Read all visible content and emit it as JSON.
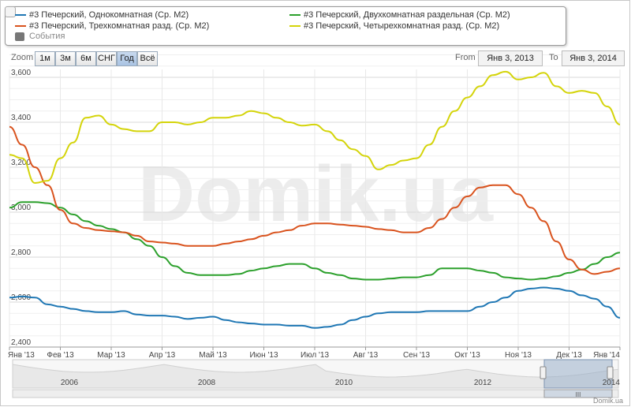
{
  "legend": {
    "items": [
      {
        "label": "#3 Печерский, Однокомнатная (Ср. М2)",
        "color": "#1f77b4"
      },
      {
        "label": "#3 Печерский, Двухкомнатная раздельная (Ср. М2)",
        "color": "#2ca02c"
      },
      {
        "label": "#3 Печерский, Трехкомнатная разд. (Ср. М2)",
        "color": "#d9531e"
      },
      {
        "label": "#3 Печерский, Четырехкомнатная разд. (Ср. М2)",
        "color": "#d4d40a"
      }
    ],
    "events_label": "События"
  },
  "zoom": {
    "label": "Zoom",
    "buttons": [
      "1м",
      "3м",
      "6м",
      "СНГ",
      "Год",
      "Всё"
    ],
    "active": "Год"
  },
  "range": {
    "from_label": "From",
    "from_value": "Янв 3, 2013",
    "to_label": "To",
    "to_value": "Янв 3, 2014"
  },
  "watermark": "Domik.ua",
  "credit": "Domik.ua",
  "chart_data": {
    "type": "line",
    "x_ticks": [
      "Янв '13",
      "Фев '13",
      "Мар '13",
      "Апр '13",
      "Май '13",
      "Июн '13",
      "Июл '13",
      "Авг '13",
      "Сен '13",
      "Окт '13",
      "Ноя '13",
      "Дек '13",
      "Янв '14"
    ],
    "y_ticks": [
      "2,400",
      "2,600",
      "2,800",
      "3,000",
      "3,200",
      "3,400",
      "3,600"
    ],
    "ylim": [
      2400,
      3600
    ],
    "x": [
      0,
      0.25,
      0.5,
      0.75,
      1,
      1.25,
      1.5,
      1.75,
      2,
      2.25,
      2.5,
      2.75,
      3,
      3.25,
      3.5,
      3.75,
      4,
      4.25,
      4.5,
      4.75,
      5,
      5.25,
      5.5,
      5.75,
      6,
      6.25,
      6.5,
      6.75,
      7,
      7.25,
      7.5,
      7.75,
      8,
      8.25,
      8.5,
      8.75,
      9,
      9.25,
      9.5,
      9.75,
      10,
      10.25,
      10.5,
      10.75,
      11,
      11.25,
      11.5,
      11.75,
      12
    ],
    "series": [
      {
        "name": "#3 Печерский, Однокомнатная (Ср. М2)",
        "color": "#1f77b4",
        "values": [
          2620,
          2625,
          2620,
          2590,
          2580,
          2570,
          2560,
          2555,
          2555,
          2560,
          2545,
          2540,
          2540,
          2535,
          2525,
          2530,
          2535,
          2520,
          2510,
          2505,
          2500,
          2500,
          2495,
          2495,
          2485,
          2490,
          2500,
          2520,
          2535,
          2550,
          2555,
          2555,
          2555,
          2560,
          2560,
          2560,
          2560,
          2580,
          2600,
          2620,
          2650,
          2660,
          2665,
          2660,
          2650,
          2630,
          2615,
          2580,
          2530
        ]
      },
      {
        "name": "#3 Печерский, Двухкомнатная раздельная (Ср. М2)",
        "color": "#2ca02c",
        "values": [
          3020,
          3045,
          3045,
          3040,
          3020,
          2990,
          2960,
          2940,
          2925,
          2910,
          2880,
          2850,
          2800,
          2760,
          2730,
          2720,
          2720,
          2720,
          2725,
          2740,
          2750,
          2760,
          2770,
          2770,
          2750,
          2730,
          2720,
          2705,
          2700,
          2700,
          2705,
          2710,
          2710,
          2720,
          2750,
          2750,
          2750,
          2740,
          2730,
          2710,
          2705,
          2700,
          2705,
          2715,
          2730,
          2745,
          2770,
          2800,
          2820
        ]
      },
      {
        "name": "#3 Печерский, Трехкомнатная разд. (Ср. М2)",
        "color": "#d9531e",
        "values": [
          3380,
          3300,
          3200,
          3120,
          3010,
          2950,
          2930,
          2920,
          2915,
          2910,
          2895,
          2870,
          2865,
          2860,
          2850,
          2850,
          2850,
          2860,
          2870,
          2880,
          2895,
          2910,
          2920,
          2940,
          2950,
          2950,
          2945,
          2940,
          2935,
          2925,
          2920,
          2910,
          2910,
          2930,
          2970,
          3020,
          3070,
          3110,
          3120,
          3120,
          3080,
          3020,
          2960,
          2870,
          2790,
          2745,
          2725,
          2735,
          2750
        ]
      },
      {
        "name": "#3 Печерский, Четырехкомнатная разд. (Ср. М2)",
        "color": "#d4d40a",
        "values": [
          3255,
          3240,
          3130,
          3140,
          3240,
          3310,
          3420,
          3430,
          3390,
          3370,
          3360,
          3360,
          3400,
          3400,
          3390,
          3400,
          3420,
          3420,
          3430,
          3450,
          3440,
          3420,
          3400,
          3385,
          3390,
          3360,
          3320,
          3280,
          3250,
          3190,
          3210,
          3230,
          3240,
          3300,
          3380,
          3450,
          3510,
          3560,
          3610,
          3625,
          3590,
          3600,
          3620,
          3560,
          3530,
          3540,
          3530,
          3470,
          3390
        ]
      }
    ]
  },
  "navigator": {
    "labels": [
      "2006",
      "2008",
      "2010",
      "2012",
      "2014"
    ],
    "handle_mark": "III"
  }
}
